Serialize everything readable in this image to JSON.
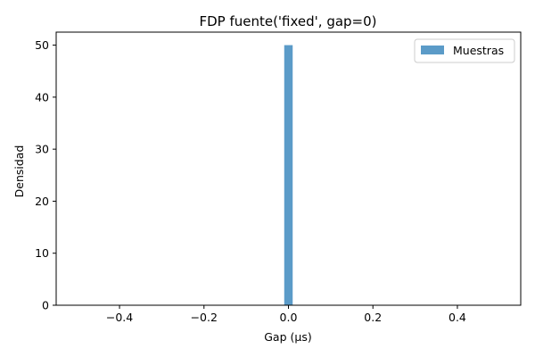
{
  "chart_data": {
    "type": "bar",
    "title": "FDP fuente('fixed', gap=0)",
    "xlabel": "Gap (µs)",
    "ylabel": "Densidad",
    "xlim": [
      -0.55,
      0.55
    ],
    "ylim": [
      0,
      52.5
    ],
    "xticks": [
      -0.4,
      -0.2,
      0.0,
      0.2,
      0.4
    ],
    "xtick_labels": [
      "−0.4",
      "−0.2",
      "0.0",
      "0.2",
      "0.4"
    ],
    "yticks": [
      0,
      10,
      20,
      30,
      40,
      50
    ],
    "ytick_labels": [
      "0",
      "10",
      "20",
      "30",
      "40",
      "50"
    ],
    "grid": false,
    "legend_position": "top-right",
    "series": [
      {
        "name": "Muestras",
        "color": "#5b9bc8",
        "bins": [
          {
            "x0": -0.01,
            "x1": 0.01,
            "value": 50
          }
        ]
      }
    ]
  }
}
